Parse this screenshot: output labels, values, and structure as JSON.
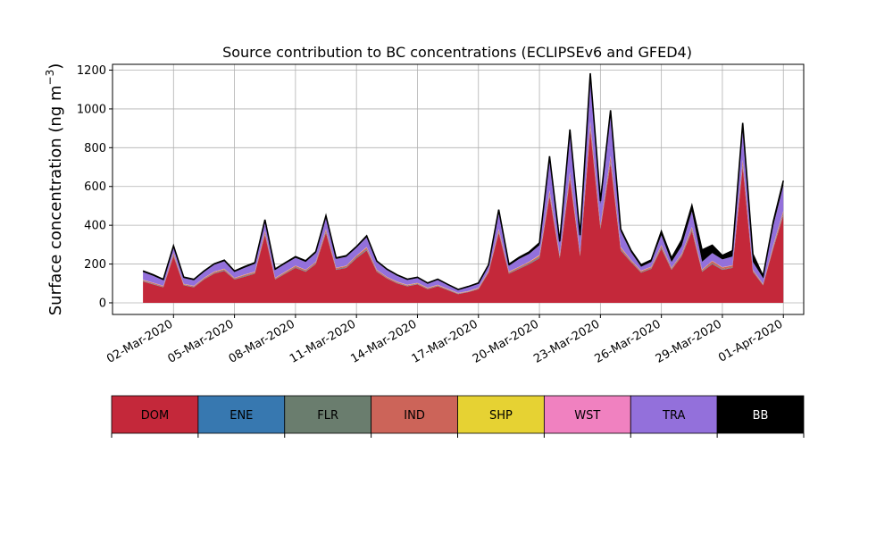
{
  "chart_data": {
    "type": "area",
    "stacked": true,
    "title": "Source contribution to BC concentrations (ECLIPSEv6 and GFED4)",
    "ylabel": "Surface concentration (ng m",
    "ylabel_sup": "−3",
    "ylabel_close": ")",
    "xlim": [
      "2020-02-28",
      "2020-04-02"
    ],
    "ylim": [
      -60,
      1230
    ],
    "yticks": [
      0,
      200,
      400,
      600,
      800,
      1000,
      1200
    ],
    "ytick_labels": [
      "0",
      "200",
      "400",
      "600",
      "800",
      "1000",
      "1200"
    ],
    "xticks": [
      "2020-03-02",
      "2020-03-05",
      "2020-03-08",
      "2020-03-11",
      "2020-03-14",
      "2020-03-17",
      "2020-03-20",
      "2020-03-23",
      "2020-03-26",
      "2020-03-29",
      "2020-04-01"
    ],
    "xtick_labels": [
      "02-Mar-2020",
      "05-Mar-2020",
      "08-Mar-2020",
      "11-Mar-2020",
      "14-Mar-2020",
      "17-Mar-2020",
      "20-Mar-2020",
      "23-Mar-2020",
      "26-Mar-2020",
      "29-Mar-2020",
      "01-Apr-2020"
    ],
    "grid": true,
    "legend_position": "bottom (separate colorbar)",
    "x": [
      "2020-02-29 12:00",
      "2020-03-01 00:00",
      "2020-03-01 12:00",
      "2020-03-02 00:00",
      "2020-03-02 12:00",
      "2020-03-03 00:00",
      "2020-03-03 12:00",
      "2020-03-04 00:00",
      "2020-03-04 12:00",
      "2020-03-05 00:00",
      "2020-03-05 12:00",
      "2020-03-06 00:00",
      "2020-03-06 12:00",
      "2020-03-07 00:00",
      "2020-03-07 12:00",
      "2020-03-08 00:00",
      "2020-03-08 12:00",
      "2020-03-09 00:00",
      "2020-03-09 12:00",
      "2020-03-10 00:00",
      "2020-03-10 12:00",
      "2020-03-11 00:00",
      "2020-03-11 12:00",
      "2020-03-12 00:00",
      "2020-03-12 12:00",
      "2020-03-13 00:00",
      "2020-03-13 12:00",
      "2020-03-14 00:00",
      "2020-03-14 12:00",
      "2020-03-15 00:00",
      "2020-03-15 12:00",
      "2020-03-16 00:00",
      "2020-03-16 12:00",
      "2020-03-17 00:00",
      "2020-03-17 12:00",
      "2020-03-18 00:00",
      "2020-03-18 12:00",
      "2020-03-19 00:00",
      "2020-03-19 12:00",
      "2020-03-20 00:00",
      "2020-03-20 12:00",
      "2020-03-21 00:00",
      "2020-03-21 12:00",
      "2020-03-22 00:00",
      "2020-03-22 12:00",
      "2020-03-23 00:00",
      "2020-03-23 12:00",
      "2020-03-24 00:00",
      "2020-03-24 12:00",
      "2020-03-25 00:00",
      "2020-03-25 12:00",
      "2020-03-26 00:00",
      "2020-03-26 12:00",
      "2020-03-27 00:00",
      "2020-03-27 12:00",
      "2020-03-28 00:00",
      "2020-03-28 12:00",
      "2020-03-29 00:00",
      "2020-03-29 12:00",
      "2020-03-30 00:00",
      "2020-03-30 12:00",
      "2020-03-31 00:00",
      "2020-03-31 12:00",
      "2020-04-01 00:00"
    ],
    "series": [
      {
        "name": "DOM",
        "color": "#c4283a",
        "values": [
          110,
          95,
          80,
          240,
          90,
          80,
          120,
          150,
          165,
          120,
          135,
          150,
          350,
          120,
          150,
          180,
          160,
          200,
          360,
          170,
          180,
          230,
          270,
          160,
          125,
          100,
          85,
          95,
          70,
          85,
          65,
          45,
          55,
          70,
          155,
          360,
          150,
          175,
          200,
          230,
          550,
          230,
          640,
          240,
          890,
          380,
          720,
          270,
          210,
          155,
          175,
          280,
          170,
          240,
          370,
          160,
          200,
          170,
          180,
          700,
          160,
          90,
          280,
          450
        ]
      },
      {
        "name": "ENE",
        "color": "#3778b0",
        "values": [
          1,
          1,
          1,
          2,
          1,
          1,
          1,
          1,
          1,
          1,
          1,
          1,
          2,
          1,
          1,
          1,
          1,
          1,
          2,
          1,
          1,
          1,
          2,
          1,
          1,
          1,
          1,
          1,
          1,
          1,
          1,
          1,
          1,
          1,
          1,
          2,
          1,
          1,
          1,
          2,
          3,
          2,
          3,
          2,
          4,
          2,
          3,
          2,
          1,
          1,
          1,
          2,
          1,
          1,
          2,
          1,
          1,
          1,
          1,
          3,
          1,
          1,
          2,
          2
        ]
      },
      {
        "name": "FLR",
        "color": "#6a7d6e",
        "values": [
          2,
          2,
          2,
          4,
          2,
          2,
          2,
          3,
          3,
          2,
          3,
          3,
          5,
          2,
          3,
          3,
          3,
          3,
          5,
          3,
          3,
          4,
          4,
          3,
          2,
          2,
          2,
          2,
          2,
          2,
          2,
          1,
          1,
          2,
          3,
          5,
          3,
          3,
          4,
          4,
          7,
          4,
          8,
          4,
          10,
          5,
          9,
          4,
          3,
          3,
          3,
          5,
          3,
          4,
          6,
          3,
          4,
          3,
          3,
          9,
          3,
          2,
          4,
          7
        ]
      },
      {
        "name": "IND",
        "color": "#cc6459",
        "values": [
          4,
          4,
          3,
          8,
          3,
          3,
          4,
          5,
          5,
          4,
          5,
          5,
          10,
          4,
          5,
          6,
          5,
          6,
          10,
          5,
          6,
          7,
          8,
          5,
          4,
          4,
          3,
          3,
          3,
          3,
          2,
          2,
          2,
          3,
          5,
          10,
          5,
          5,
          6,
          7,
          15,
          7,
          17,
          7,
          22,
          10,
          20,
          8,
          6,
          5,
          5,
          8,
          5,
          7,
          10,
          6,
          10,
          8,
          8,
          20,
          5,
          3,
          8,
          12
        ]
      },
      {
        "name": "SHP",
        "color": "#e6d233",
        "values": [
          1,
          1,
          1,
          2,
          1,
          1,
          1,
          1,
          1,
          1,
          1,
          1,
          2,
          1,
          1,
          1,
          1,
          1,
          2,
          1,
          1,
          1,
          2,
          1,
          1,
          1,
          1,
          1,
          1,
          1,
          1,
          1,
          1,
          1,
          1,
          2,
          1,
          1,
          1,
          2,
          3,
          2,
          3,
          2,
          4,
          2,
          3,
          2,
          1,
          1,
          1,
          2,
          1,
          1,
          2,
          1,
          1,
          1,
          1,
          3,
          1,
          1,
          2,
          2
        ]
      },
      {
        "name": "WST",
        "color": "#f081c0",
        "values": [
          1,
          1,
          1,
          2,
          1,
          1,
          1,
          1,
          1,
          1,
          1,
          1,
          2,
          1,
          1,
          1,
          1,
          1,
          2,
          1,
          1,
          1,
          2,
          1,
          1,
          1,
          1,
          1,
          1,
          1,
          1,
          1,
          1,
          1,
          1,
          2,
          1,
          1,
          1,
          2,
          3,
          2,
          3,
          2,
          4,
          2,
          3,
          2,
          1,
          1,
          1,
          2,
          1,
          1,
          2,
          1,
          1,
          1,
          1,
          3,
          1,
          1,
          2,
          2
        ]
      },
      {
        "name": "TRA",
        "color": "#9370db",
        "values": [
          40,
          35,
          28,
          30,
          30,
          28,
          30,
          35,
          38,
          30,
          35,
          40,
          50,
          40,
          40,
          40,
          40,
          45,
          60,
          45,
          45,
          40,
          50,
          40,
          35,
          30,
          25,
          25,
          20,
          25,
          20,
          15,
          20,
          20,
          25,
          80,
          30,
          40,
          40,
          50,
          160,
          60,
          200,
          80,
          230,
          110,
          220,
          80,
          40,
          20,
          25,
          50,
          30,
          40,
          80,
          40,
          40,
          40,
          45,
          150,
          40,
          30,
          100,
          130
        ]
      },
      {
        "name": "BB",
        "color": "#000000",
        "values": [
          6,
          6,
          5,
          6,
          5,
          5,
          5,
          5,
          6,
          5,
          6,
          6,
          8,
          5,
          6,
          6,
          6,
          7,
          8,
          6,
          6,
          6,
          8,
          5,
          5,
          5,
          4,
          4,
          4,
          4,
          3,
          3,
          3,
          4,
          5,
          20,
          8,
          9,
          10,
          12,
          15,
          10,
          20,
          12,
          20,
          14,
          15,
          12,
          10,
          10,
          10,
          20,
          20,
          30,
          30,
          60,
          40,
          20,
          30,
          40,
          40,
          10,
          20,
          25
        ]
      }
    ]
  },
  "legend": {
    "items": [
      {
        "label": "DOM",
        "color": "#c4283a",
        "text_color": "#000000"
      },
      {
        "label": "ENE",
        "color": "#3778b0",
        "text_color": "#000000"
      },
      {
        "label": "FLR",
        "color": "#6a7d6e",
        "text_color": "#000000"
      },
      {
        "label": "IND",
        "color": "#cc6459",
        "text_color": "#000000"
      },
      {
        "label": "SHP",
        "color": "#e6d233",
        "text_color": "#000000"
      },
      {
        "label": "WST",
        "color": "#f081c0",
        "text_color": "#000000"
      },
      {
        "label": "TRA",
        "color": "#9370db",
        "text_color": "#000000"
      },
      {
        "label": "BB",
        "color": "#000000",
        "text_color": "#ffffff"
      }
    ]
  }
}
